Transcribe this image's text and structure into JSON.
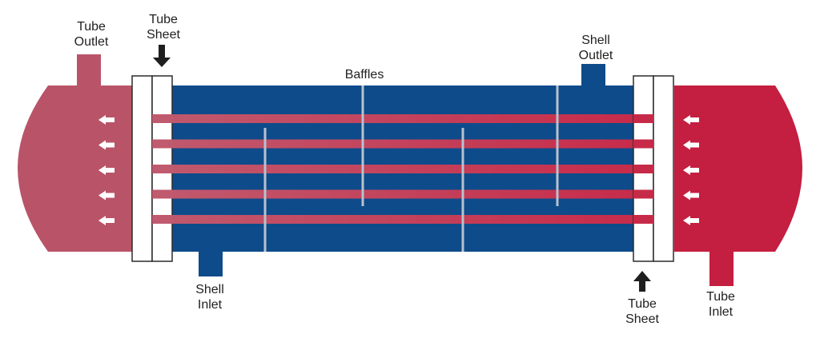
{
  "colors": {
    "shell": "#0e4b8a",
    "tube_outlet_head": "#b95468",
    "tube_inlet_head": "#c41e40",
    "tube_stripe_left": "#c05a6e",
    "tube_stripe_right": "#c72a49",
    "baffle": "#b8c2cf",
    "arrow": "#ffffff",
    "tube_sheet": "#ffffff",
    "outline": "#2b2b2b"
  },
  "icons": {
    "tube_sheet_top_arrow": "arrow-down-icon",
    "tube_sheet_bottom_arrow": "arrow-up-icon",
    "flow_arrows": "arrow-left-icon"
  },
  "labels": {
    "tube_outlet": [
      "Tube",
      "Outlet"
    ],
    "tube_sheet_top": [
      "Tube",
      "Sheet"
    ],
    "baffles": "Baffles",
    "shell_outlet": [
      "Shell",
      "Outlet"
    ],
    "shell_inlet": [
      "Shell",
      "Inlet"
    ],
    "tube_sheet_bottom": [
      "Tube",
      "Sheet"
    ],
    "tube_inlet": [
      "Tube",
      "Inlet"
    ]
  },
  "counts": {
    "tubes": 5,
    "baffles": 4,
    "flow_arrows_per_side": 5
  }
}
